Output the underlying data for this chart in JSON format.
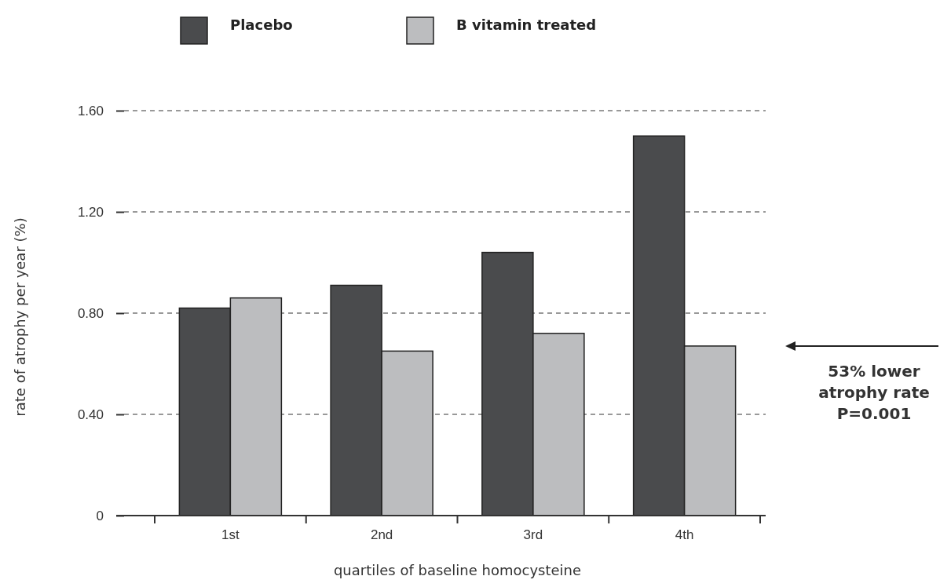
{
  "chart_data": {
    "type": "bar",
    "xlabel": "quartiles of baseline homocysteine",
    "ylabel": "rate of atrophy per year (%)",
    "categories": [
      "1st",
      "2nd",
      "3rd",
      "4th"
    ],
    "series": [
      {
        "name": "Placebo",
        "color": "#4a4b4d",
        "values": [
          0.82,
          0.91,
          1.04,
          1.5
        ]
      },
      {
        "name": "B vitamin treated",
        "color": "#bcbdbf",
        "values": [
          0.86,
          0.65,
          0.72,
          0.67
        ]
      }
    ],
    "ylim": [
      0,
      1.6
    ],
    "yticks": [
      {
        "value": 0,
        "label": "0"
      },
      {
        "value": 0.4,
        "label": "0.40"
      },
      {
        "value": 0.8,
        "label": "0.80"
      },
      {
        "value": 1.2,
        "label": "1.20"
      },
      {
        "value": 1.6,
        "label": "1.60"
      }
    ],
    "grid": "y",
    "legend": "top",
    "annotations": [
      "53% lower\natrophy rate\nP=0.001"
    ]
  }
}
